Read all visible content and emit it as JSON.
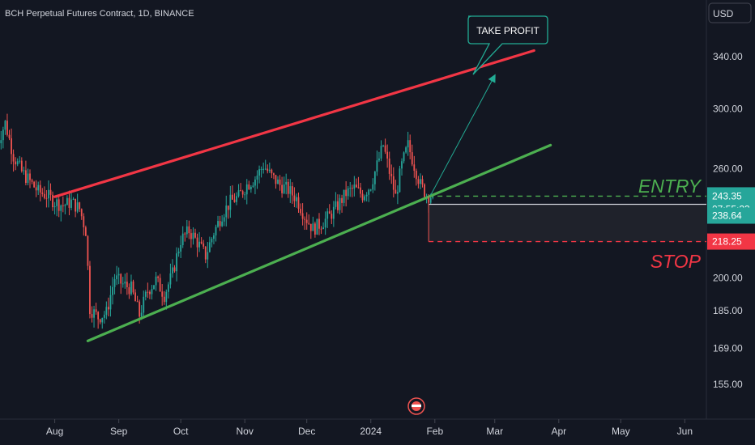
{
  "chart_title": "BCH Perpetual Futures Contract, 1D, BINANCE",
  "currency_button": "USD",
  "colors": {
    "background": "#131722",
    "up": "#26a69a",
    "down": "#ef5350",
    "resistance": "#f23645",
    "support": "#4caf50",
    "arrow": "#22ab94",
    "text": "#d1d4dc"
  },
  "chart_data": {
    "type": "candlestick",
    "title": "BCH Perpetual Futures Contract, 1D, BINANCE",
    "y_scale": "log",
    "y_ticks": [
      "340.00",
      "300.00",
      "260.00",
      "200.00",
      "185.00",
      "169.00",
      "155.00"
    ],
    "y_tick_values": [
      340,
      300,
      260,
      200,
      185,
      169,
      155
    ],
    "x_ticks": [
      "Aug",
      "Sep",
      "Oct",
      "Nov",
      "Dec",
      "2024",
      "Feb",
      "Mar",
      "Apr",
      "May",
      "Jun"
    ],
    "ylim": [
      148,
      372
    ],
    "price_path": [
      [
        "2023-07-04",
        275
      ],
      [
        "2023-07-08",
        290
      ],
      [
        "2023-07-12",
        268
      ],
      [
        "2023-07-16",
        258
      ],
      [
        "2023-07-20",
        252
      ],
      [
        "2023-07-24",
        246
      ],
      [
        "2023-07-28",
        244
      ],
      [
        "2023-08-01",
        240
      ],
      [
        "2023-08-05",
        238
      ],
      [
        "2023-08-09",
        240
      ],
      [
        "2023-08-13",
        236
      ],
      [
        "2023-08-16",
        224
      ],
      [
        "2023-08-18",
        186
      ],
      [
        "2023-08-22",
        182
      ],
      [
        "2023-08-26",
        184
      ],
      [
        "2023-08-30",
        200
      ],
      [
        "2023-09-03",
        197
      ],
      [
        "2023-09-07",
        195
      ],
      [
        "2023-09-11",
        183
      ],
      [
        "2023-09-15",
        194
      ],
      [
        "2023-09-19",
        199
      ],
      [
        "2023-09-23",
        192
      ],
      [
        "2023-09-27",
        202
      ],
      [
        "2023-10-01",
        219
      ],
      [
        "2023-10-05",
        224
      ],
      [
        "2023-10-09",
        218
      ],
      [
        "2023-10-13",
        211
      ],
      [
        "2023-10-17",
        223
      ],
      [
        "2023-10-21",
        233
      ],
      [
        "2023-10-25",
        240
      ],
      [
        "2023-10-29",
        243
      ],
      [
        "2023-11-02",
        250
      ],
      [
        "2023-11-06",
        254
      ],
      [
        "2023-11-10",
        262
      ],
      [
        "2023-11-14",
        255
      ],
      [
        "2023-11-18",
        250
      ],
      [
        "2023-11-22",
        247
      ],
      [
        "2023-11-26",
        242
      ],
      [
        "2023-11-30",
        232
      ],
      [
        "2023-12-04",
        225
      ],
      [
        "2023-12-08",
        228
      ],
      [
        "2023-12-12",
        232
      ],
      [
        "2023-12-16",
        238
      ],
      [
        "2023-12-20",
        245
      ],
      [
        "2023-12-24",
        248
      ],
      [
        "2023-12-28",
        244
      ],
      [
        "2024-01-01",
        250
      ],
      [
        "2024-01-04",
        262
      ],
      [
        "2024-01-07",
        275
      ],
      [
        "2024-01-10",
        258
      ],
      [
        "2024-01-13",
        243
      ],
      [
        "2024-01-16",
        262
      ],
      [
        "2024-01-19",
        275
      ],
      [
        "2024-01-22",
        262
      ],
      [
        "2024-01-25",
        250
      ],
      [
        "2024-01-28",
        244
      ],
      [
        "2024-01-31",
        243.35
      ]
    ],
    "trendlines": [
      {
        "name": "resistance",
        "start": [
          "2023-08-01",
          243
        ],
        "end": [
          "2024-03-20",
          345
        ]
      },
      {
        "name": "support",
        "start": [
          "2023-08-17",
          172
        ],
        "end": [
          "2024-03-28",
          275
        ]
      }
    ],
    "levels": [
      {
        "label": "ENTRY",
        "price": 243.35,
        "style": "dashed",
        "color": "#4caf50"
      },
      {
        "label": "238.64",
        "price": 238.64,
        "style": "solid",
        "color": "#d1d4dc"
      },
      {
        "label": "STOP",
        "price": 218.25,
        "style": "dashed",
        "color": "#f23645"
      }
    ],
    "price_tags": [
      {
        "text": "243.35",
        "sub": "07:55:23",
        "price": 243.35,
        "bg": "#26a69a"
      },
      {
        "text": "238.64",
        "price": 238.64,
        "bg": "#26a69a"
      },
      {
        "text": "218.25",
        "price": 218.25,
        "bg": "#f23645"
      }
    ],
    "annotations": [
      {
        "text": "TAKE PROFIT",
        "target": [
          "2024-03-01",
          325
        ]
      },
      {
        "text": "ENTRY"
      },
      {
        "text": "STOP"
      }
    ]
  }
}
